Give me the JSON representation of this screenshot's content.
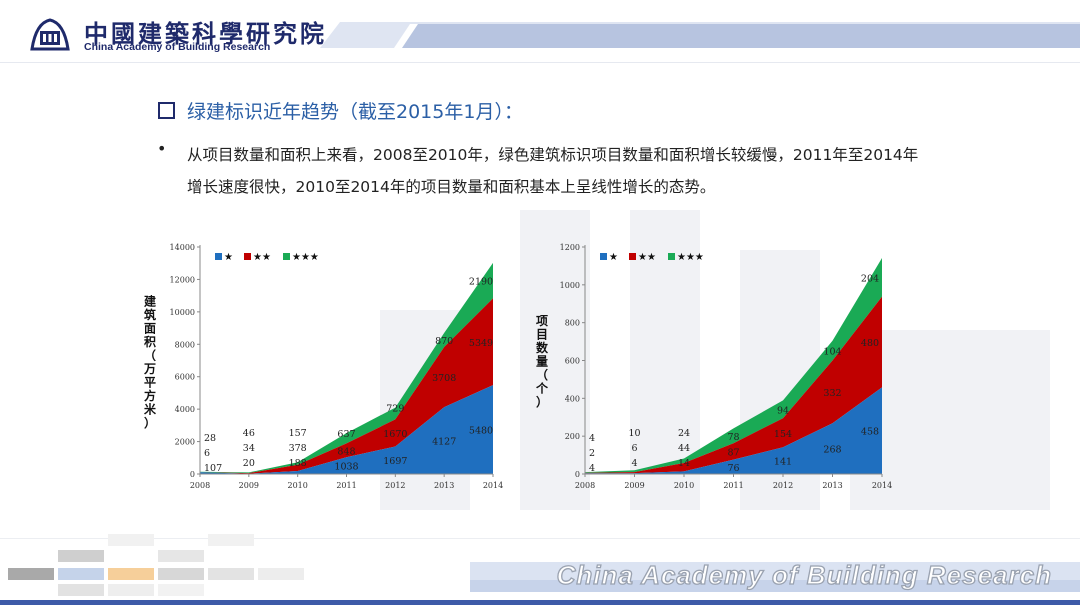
{
  "header": {
    "logo_cn": "中國建築科學研究院",
    "logo_en": "China Academy of Building Research"
  },
  "heading": "绿建标识近年趋势（截至2015年1月）：",
  "bullet": "从项目数量和面积上来看，2008至2010年，绿色建筑标识项目数量和面积增长较缓慢，2011年至2014年增长速度很快，2010至2014年的项目数量和面积基本上呈线性增长的态势。",
  "footer_text": "China Academy of Building Research",
  "colors": {
    "one_star": "#1f6fbf",
    "two_star": "#c00000",
    "three_star": "#1aaa55",
    "brand": "#1f2a6b"
  },
  "chart_data": [
    {
      "type": "area",
      "stacked": true,
      "ylabel": "建筑面积（万平方米）",
      "ylim": [
        0,
        14000
      ],
      "yticks": [
        0,
        2000,
        4000,
        6000,
        8000,
        10000,
        12000,
        14000
      ],
      "x": [
        "2008",
        "2009",
        "2010",
        "2011",
        "2012",
        "2013",
        "2014"
      ],
      "legend_position": "top-left",
      "series": [
        {
          "name": "★",
          "color": "#1f6fbf",
          "values": [
            107,
            20,
            188,
            1038,
            1697,
            4127,
            5480
          ]
        },
        {
          "name": "★★",
          "color": "#c00000",
          "values": [
            6,
            34,
            378,
            848,
            1670,
            3708,
            5349
          ]
        },
        {
          "name": "★★★",
          "color": "#1aaa55",
          "values": [
            28,
            46,
            157,
            637,
            729,
            870,
            2190
          ]
        }
      ]
    },
    {
      "type": "area",
      "stacked": true,
      "ylabel": "项目数量（个）",
      "ylim": [
        0,
        1200
      ],
      "yticks": [
        0,
        200,
        400,
        600,
        800,
        1000,
        1200
      ],
      "x": [
        "2008",
        "2009",
        "2010",
        "2011",
        "2012",
        "2013",
        "2014"
      ],
      "legend_position": "top-left",
      "series": [
        {
          "name": "★",
          "color": "#1f6fbf",
          "values": [
            4,
            4,
            14,
            76,
            141,
            268,
            458
          ]
        },
        {
          "name": "★★",
          "color": "#c00000",
          "values": [
            2,
            6,
            44,
            87,
            154,
            332,
            480
          ]
        },
        {
          "name": "★★★",
          "color": "#1aaa55",
          "values": [
            4,
            10,
            24,
            78,
            94,
            104,
            204
          ]
        }
      ]
    }
  ]
}
